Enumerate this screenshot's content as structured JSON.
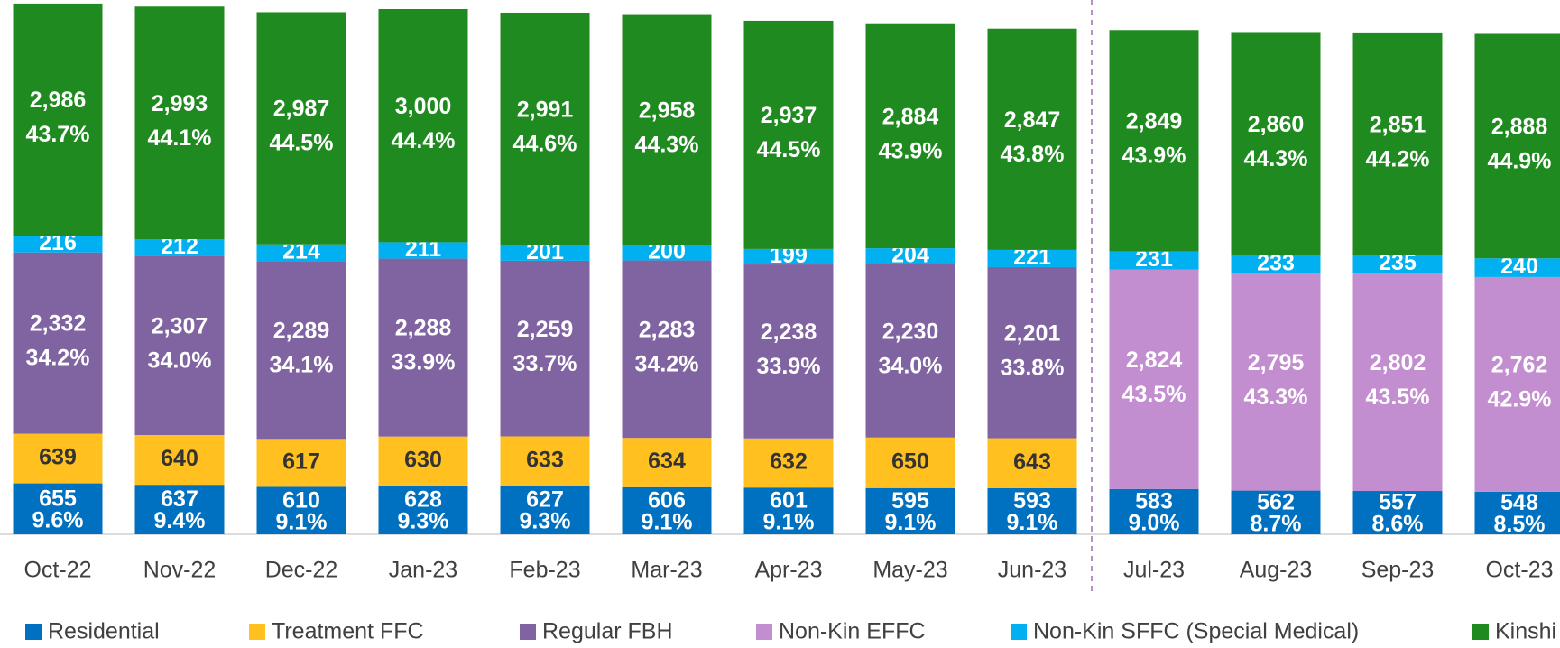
{
  "chart_data": {
    "type": "stacked_bar",
    "categories": [
      "Oct-22",
      "Nov-22",
      "Dec-22",
      "Jan-23",
      "Feb-23",
      "Mar-23",
      "Apr-23",
      "May-23",
      "Jun-23",
      "Jul-23",
      "Aug-23",
      "Sep-23",
      "Oct-23"
    ],
    "ylim": [
      0,
      6850
    ],
    "series": [
      {
        "name": "Residential",
        "color": "#0070c0",
        "values": [
          655,
          637,
          610,
          628,
          627,
          606,
          601,
          595,
          593,
          583,
          562,
          557,
          548
        ],
        "share_labels": [
          "9.6%",
          "9.4%",
          "9.1%",
          "9.3%",
          "9.3%",
          "9.1%",
          "9.1%",
          "9.1%",
          "9.1%",
          "9.0%",
          "8.7%",
          "8.6%",
          "8.5%"
        ]
      },
      {
        "name": "Treatment FFC",
        "color": "#ffc020",
        "values": [
          639,
          640,
          617,
          630,
          633,
          634,
          632,
          650,
          643,
          null,
          null,
          null,
          null
        ]
      },
      {
        "name": "Regular FBH",
        "color": "#8064a2",
        "values": [
          2332,
          2307,
          2289,
          2288,
          2259,
          2283,
          2238,
          2230,
          2201,
          null,
          null,
          null,
          null
        ],
        "value_labels": [
          "2,332",
          "2,307",
          "2,289",
          "2,288",
          "2,259",
          "2,283",
          "2,238",
          "2,230",
          "2,201",
          null,
          null,
          null,
          null
        ],
        "share_labels": [
          "34.2%",
          "34.0%",
          "34.1%",
          "33.9%",
          "33.7%",
          "34.2%",
          "33.9%",
          "34.0%",
          "33.8%",
          null,
          null,
          null,
          null
        ]
      },
      {
        "name": "Non-Kin EFFC",
        "color": "#c38ecf",
        "values": [
          null,
          null,
          null,
          null,
          null,
          null,
          null,
          null,
          null,
          2824,
          2795,
          2802,
          2762
        ],
        "value_labels": [
          null,
          null,
          null,
          null,
          null,
          null,
          null,
          null,
          null,
          "2,824",
          "2,795",
          "2,802",
          "2,762"
        ],
        "share_labels": [
          null,
          null,
          null,
          null,
          null,
          null,
          null,
          null,
          null,
          "43.5%",
          "43.3%",
          "43.5%",
          "42.9%"
        ]
      },
      {
        "name": "Non-Kin SFFC (Special Medical)",
        "color": "#00b0f0",
        "values": [
          216,
          212,
          214,
          211,
          201,
          200,
          199,
          204,
          221,
          231,
          233,
          235,
          240
        ]
      },
      {
        "name": "Kinshi",
        "color": "#1f8a1f",
        "values": [
          2986,
          2993,
          2987,
          3000,
          2991,
          2958,
          2937,
          2884,
          2847,
          2849,
          2860,
          2851,
          2888
        ],
        "value_labels": [
          "2,986",
          "2,993",
          "2,987",
          "3,000",
          "2,991",
          "2,958",
          "2,937",
          "2,884",
          "2,847",
          "2,849",
          "2,860",
          "2,851",
          "2,888"
        ],
        "share_labels": [
          "43.7%",
          "44.1%",
          "44.5%",
          "44.4%",
          "44.6%",
          "44.3%",
          "44.5%",
          "43.9%",
          "43.8%",
          "43.9%",
          "44.3%",
          "44.2%",
          "44.9%"
        ]
      }
    ]
  }
}
